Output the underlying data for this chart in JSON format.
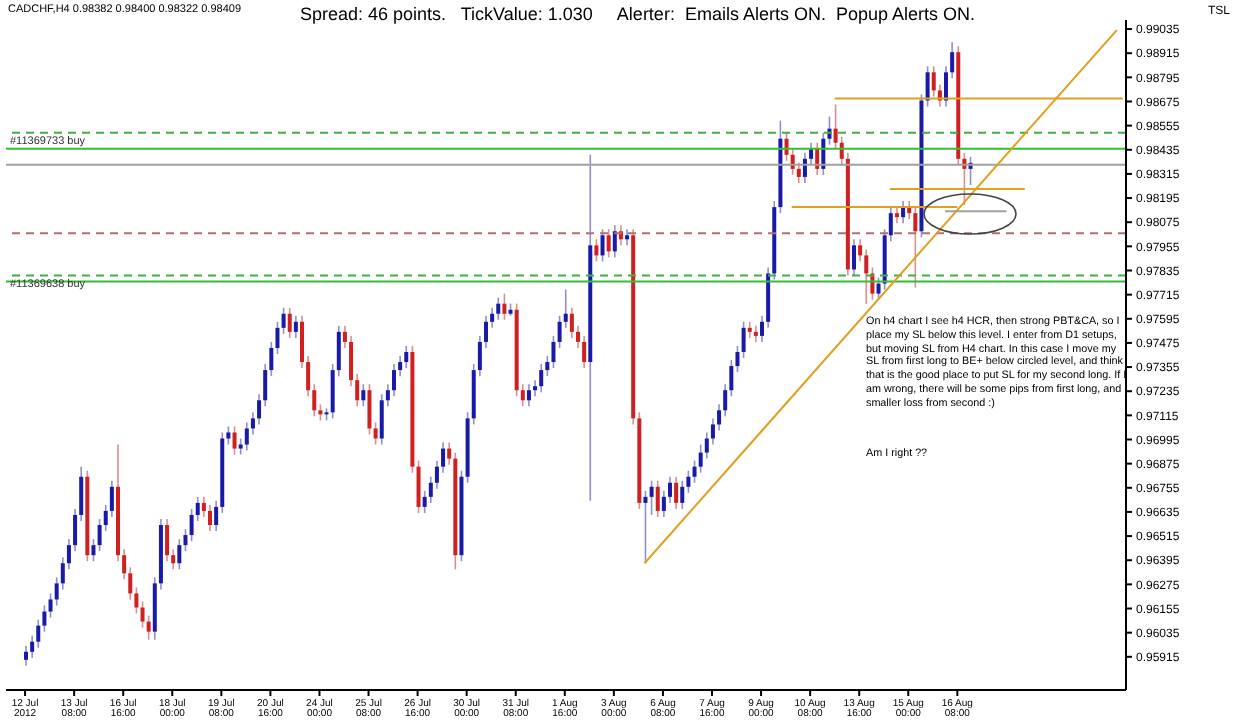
{
  "chart_data": {
    "type": "candlestick",
    "title": "CADCHF,H4 0.98382 0.98400 0.98322 0.98409",
    "subtitle": "Spread: 46 points.   TickValue: 1.030     Alerter:  Emails Alerts ON.  Popup Alerts ON.",
    "annotations": [
      "TSL",
      "On h4 chart I see h4 HCR, then strong PBT&CA, so I place my SL below this level. I enter from D1 setups, but moving SL from H4 chart. In this case I move my SL from first long to BE+ below circled level, and think that is the good place to put SL for my second long. If I am wrong, there will be some pips from first long, and smaller loss from second :)",
      "Am I right ??"
    ],
    "categories": [
      "12 Jul 2012",
      null,
      null,
      null,
      null,
      null,
      null,
      null,
      "13 Jul 08:00",
      null,
      null,
      null,
      null,
      null,
      null,
      null,
      "16 Jul 16:00",
      null,
      null,
      null,
      null,
      null,
      null,
      null,
      "18 Jul 00:00",
      null,
      null,
      null,
      null,
      null,
      null,
      null,
      "19 Jul 08:00",
      null,
      null,
      null,
      null,
      null,
      null,
      null,
      "20 Jul 16:00",
      null,
      null,
      null,
      null,
      null,
      null,
      null,
      "24 Jul 00:00",
      null,
      null,
      null,
      null,
      null,
      null,
      null,
      "25 Jul 08:00",
      null,
      null,
      null,
      null,
      null,
      null,
      null,
      "26 Jul 16:00",
      null,
      null,
      null,
      null,
      null,
      null,
      null,
      "30 Jul 00:00",
      null,
      null,
      null,
      null,
      null,
      null,
      null,
      "31 Jul 08:00",
      null,
      null,
      null,
      null,
      null,
      null,
      null,
      "1 Aug 16:00",
      null,
      null,
      null,
      null,
      null,
      null,
      null,
      "3 Aug 00:00",
      null,
      null,
      null,
      null,
      null,
      null,
      null,
      "6 Aug 08:00",
      null,
      null,
      null,
      null,
      null,
      null,
      null,
      "7 Aug 16:00",
      null,
      null,
      null,
      null,
      null,
      null,
      null,
      "9 Aug 00:00",
      null,
      null,
      null,
      null,
      null,
      null,
      null,
      "10 Aug 08:00",
      null,
      null,
      null,
      null,
      null,
      null,
      null,
      "13 Aug 16:00",
      null,
      null,
      null,
      null,
      null,
      null,
      null,
      "15 Aug 00:00",
      null,
      null,
      null,
      null,
      null,
      null,
      null,
      "16 Aug 08:00",
      null,
      null,
      null,
      null,
      null,
      null,
      null,
      null,
      null,
      null,
      null,
      null,
      null,
      null,
      null,
      null,
      null,
      null,
      null,
      null,
      null,
      null,
      null,
      null,
      null,
      null,
      null
    ],
    "ohlc": [
      [
        0.959,
        0.9597,
        0.9587,
        0.9594
      ],
      [
        0.9594,
        0.9602,
        0.9591,
        0.9599
      ],
      [
        0.9599,
        0.961,
        0.9596,
        0.9607
      ],
      [
        0.9607,
        0.9617,
        0.9604,
        0.9614
      ],
      [
        0.9614,
        0.9623,
        0.9611,
        0.962
      ],
      [
        0.962,
        0.9631,
        0.9617,
        0.9628
      ],
      [
        0.9628,
        0.9641,
        0.9625,
        0.9638
      ],
      [
        0.9638,
        0.965,
        0.9635,
        0.9647
      ],
      [
        0.9647,
        0.9665,
        0.9644,
        0.9662
      ],
      [
        0.9662,
        0.9686,
        0.9659,
        0.9681
      ],
      [
        0.9681,
        0.9684,
        0.9639,
        0.9642
      ],
      [
        0.9642,
        0.965,
        0.9639,
        0.9647
      ],
      [
        0.9647,
        0.966,
        0.9644,
        0.9657
      ],
      [
        0.9657,
        0.9667,
        0.9654,
        0.9664
      ],
      [
        0.9664,
        0.9679,
        0.9661,
        0.9676
      ],
      [
        0.9676,
        0.9697,
        0.9639,
        0.9642
      ],
      [
        0.9642,
        0.9645,
        0.963,
        0.9633
      ],
      [
        0.9633,
        0.9636,
        0.962,
        0.9623
      ],
      [
        0.9623,
        0.9626,
        0.9613,
        0.9616
      ],
      [
        0.9616,
        0.9619,
        0.9606,
        0.9609
      ],
      [
        0.9609,
        0.9612,
        0.96,
        0.9604
      ],
      [
        0.9604,
        0.9631,
        0.96,
        0.9628
      ],
      [
        0.9628,
        0.966,
        0.9625,
        0.9657
      ],
      [
        0.9657,
        0.966,
        0.9639,
        0.9642
      ],
      [
        0.9642,
        0.9645,
        0.9635,
        0.9638
      ],
      [
        0.9638,
        0.965,
        0.9635,
        0.9647
      ],
      [
        0.9647,
        0.9655,
        0.9644,
        0.9652
      ],
      [
        0.9652,
        0.9665,
        0.9649,
        0.9662
      ],
      [
        0.9662,
        0.9671,
        0.9659,
        0.9668
      ],
      [
        0.9668,
        0.9671,
        0.9661,
        0.9664
      ],
      [
        0.9664,
        0.9667,
        0.9654,
        0.9657
      ],
      [
        0.9657,
        0.9669,
        0.9654,
        0.9666
      ],
      [
        0.9666,
        0.9703,
        0.9663,
        0.97
      ],
      [
        0.97,
        0.9706,
        0.9697,
        0.9703
      ],
      [
        0.9703,
        0.9706,
        0.9692,
        0.9695
      ],
      [
        0.9695,
        0.97,
        0.9692,
        0.9697
      ],
      [
        0.9697,
        0.9708,
        0.9694,
        0.9705
      ],
      [
        0.9705,
        0.9713,
        0.9702,
        0.971
      ],
      [
        0.971,
        0.9722,
        0.9707,
        0.9719
      ],
      [
        0.9719,
        0.9737,
        0.9716,
        0.9734
      ],
      [
        0.9734,
        0.9748,
        0.9731,
        0.9745
      ],
      [
        0.9745,
        0.9758,
        0.9742,
        0.9755
      ],
      [
        0.9755,
        0.9765,
        0.9752,
        0.9762
      ],
      [
        0.9762,
        0.9765,
        0.975,
        0.9753
      ],
      [
        0.9753,
        0.9761,
        0.975,
        0.9758
      ],
      [
        0.9758,
        0.9761,
        0.9735,
        0.9738
      ],
      [
        0.9738,
        0.9741,
        0.9721,
        0.9724
      ],
      [
        0.9724,
        0.9727,
        0.9711,
        0.9714
      ],
      [
        0.9714,
        0.9717,
        0.9709,
        0.9712
      ],
      [
        0.9712,
        0.9715,
        0.9709,
        0.9713
      ],
      [
        0.9713,
        0.9737,
        0.971,
        0.9734
      ],
      [
        0.9734,
        0.9756,
        0.9731,
        0.9753
      ],
      [
        0.9753,
        0.9756,
        0.9745,
        0.9748
      ],
      [
        0.9748,
        0.9751,
        0.9726,
        0.9729
      ],
      [
        0.9729,
        0.9732,
        0.9716,
        0.9719
      ],
      [
        0.9719,
        0.9727,
        0.9716,
        0.9724
      ],
      [
        0.9724,
        0.9727,
        0.9702,
        0.9705
      ],
      [
        0.9705,
        0.9708,
        0.9697,
        0.97
      ],
      [
        0.97,
        0.9722,
        0.9697,
        0.9719
      ],
      [
        0.9719,
        0.9727,
        0.9716,
        0.9724
      ],
      [
        0.9724,
        0.9737,
        0.9721,
        0.9734
      ],
      [
        0.9734,
        0.9741,
        0.9731,
        0.9738
      ],
      [
        0.9738,
        0.9746,
        0.9735,
        0.9743
      ],
      [
        0.9743,
        0.9746,
        0.9683,
        0.9686
      ],
      [
        0.9686,
        0.9689,
        0.9663,
        0.9666
      ],
      [
        0.9666,
        0.9674,
        0.9663,
        0.9671
      ],
      [
        0.9671,
        0.9681,
        0.9668,
        0.9678
      ],
      [
        0.9678,
        0.9689,
        0.9675,
        0.9686
      ],
      [
        0.9686,
        0.9698,
        0.9683,
        0.9695
      ],
      [
        0.9695,
        0.9698,
        0.9687,
        0.969
      ],
      [
        0.969,
        0.9693,
        0.9635,
        0.9642
      ],
      [
        0.9642,
        0.9684,
        0.9639,
        0.9681
      ],
      [
        0.9681,
        0.9713,
        0.9678,
        0.971
      ],
      [
        0.971,
        0.9737,
        0.9707,
        0.9734
      ],
      [
        0.9734,
        0.9751,
        0.9731,
        0.9748
      ],
      [
        0.9748,
        0.9761,
        0.9745,
        0.9758
      ],
      [
        0.9758,
        0.9765,
        0.9755,
        0.9762
      ],
      [
        0.9762,
        0.977,
        0.9759,
        0.9767
      ],
      [
        0.9767,
        0.9772,
        0.9759,
        0.9762
      ],
      [
        0.9762,
        0.9767,
        0.9761,
        0.9764
      ],
      [
        0.9764,
        0.9767,
        0.9721,
        0.9724
      ],
      [
        0.9724,
        0.9727,
        0.9716,
        0.9719
      ],
      [
        0.9719,
        0.9727,
        0.9716,
        0.9724
      ],
      [
        0.9724,
        0.9729,
        0.9721,
        0.9726
      ],
      [
        0.9726,
        0.9737,
        0.9723,
        0.9734
      ],
      [
        0.9734,
        0.9741,
        0.9731,
        0.9738
      ],
      [
        0.9738,
        0.9751,
        0.9735,
        0.9748
      ],
      [
        0.9748,
        0.9761,
        0.9745,
        0.9758
      ],
      [
        0.9758,
        0.9774,
        0.9755,
        0.9762
      ],
      [
        0.9762,
        0.9765,
        0.975,
        0.9753
      ],
      [
        0.9753,
        0.9756,
        0.9745,
        0.9748
      ],
      [
        0.9748,
        0.9751,
        0.9735,
        0.9738
      ],
      [
        0.9738,
        0.9841,
        0.9669,
        0.9796
      ],
      [
        0.9796,
        0.9799,
        0.9788,
        0.9791
      ],
      [
        0.9791,
        0.9804,
        0.9788,
        0.9801
      ],
      [
        0.9801,
        0.9804,
        0.979,
        0.9793
      ],
      [
        0.9793,
        0.9806,
        0.979,
        0.9803
      ],
      [
        0.9803,
        0.9806,
        0.9796,
        0.9799
      ],
      [
        0.9799,
        0.9804,
        0.9796,
        0.9801
      ],
      [
        0.9801,
        0.9804,
        0.9707,
        0.971
      ],
      [
        0.971,
        0.9713,
        0.9665,
        0.9668
      ],
      [
        0.9668,
        0.9674,
        0.9638,
        0.9671
      ],
      [
        0.9671,
        0.9679,
        0.9662,
        0.9676
      ],
      [
        0.9676,
        0.9679,
        0.9661,
        0.9664
      ],
      [
        0.9664,
        0.9674,
        0.9661,
        0.9671
      ],
      [
        0.9671,
        0.9681,
        0.9668,
        0.9678
      ],
      [
        0.9678,
        0.9681,
        0.9665,
        0.9668
      ],
      [
        0.9668,
        0.9679,
        0.9665,
        0.9676
      ],
      [
        0.9676,
        0.9684,
        0.9673,
        0.9681
      ],
      [
        0.9681,
        0.9689,
        0.9678,
        0.9686
      ],
      [
        0.9686,
        0.9697,
        0.9683,
        0.9693
      ],
      [
        0.9693,
        0.9703,
        0.969,
        0.97
      ],
      [
        0.97,
        0.971,
        0.9697,
        0.9707
      ],
      [
        0.9707,
        0.9717,
        0.9704,
        0.9714
      ],
      [
        0.9714,
        0.9727,
        0.9711,
        0.9724
      ],
      [
        0.9724,
        0.9739,
        0.9721,
        0.9736
      ],
      [
        0.9736,
        0.9746,
        0.9733,
        0.9743
      ],
      [
        0.9743,
        0.9758,
        0.974,
        0.9755
      ],
      [
        0.9755,
        0.9758,
        0.975,
        0.9753
      ],
      [
        0.9753,
        0.9756,
        0.9748,
        0.9751
      ],
      [
        0.9751,
        0.9761,
        0.9748,
        0.9758
      ],
      [
        0.9758,
        0.9785,
        0.9755,
        0.9782
      ],
      [
        0.9782,
        0.9818,
        0.9779,
        0.9815
      ],
      [
        0.9815,
        0.9858,
        0.9812,
        0.9849
      ],
      [
        0.9849,
        0.9852,
        0.9838,
        0.9841
      ],
      [
        0.9841,
        0.9844,
        0.9831,
        0.9834
      ],
      [
        0.9834,
        0.9837,
        0.9827,
        0.983
      ],
      [
        0.983,
        0.9842,
        0.9827,
        0.9839
      ],
      [
        0.9839,
        0.9847,
        0.9836,
        0.9844
      ],
      [
        0.9844,
        0.9847,
        0.9831,
        0.9834
      ],
      [
        0.9834,
        0.9852,
        0.9831,
        0.9849
      ],
      [
        0.9849,
        0.986,
        0.9846,
        0.9854
      ],
      [
        0.9854,
        0.9866,
        0.9844,
        0.9847
      ],
      [
        0.9847,
        0.985,
        0.9836,
        0.9839
      ],
      [
        0.9839,
        0.9842,
        0.9781,
        0.9784
      ],
      [
        0.9784,
        0.9799,
        0.9781,
        0.9796
      ],
      [
        0.9796,
        0.9799,
        0.9788,
        0.9791
      ],
      [
        0.9791,
        0.9794,
        0.9767,
        0.9782
      ],
      [
        0.9782,
        0.9785,
        0.9769,
        0.9772
      ],
      [
        0.9772,
        0.978,
        0.9769,
        0.9777
      ],
      [
        0.9777,
        0.9804,
        0.9774,
        0.9801
      ],
      [
        0.9801,
        0.9815,
        0.9798,
        0.9812
      ],
      [
        0.9812,
        0.9815,
        0.9807,
        0.981
      ],
      [
        0.981,
        0.9818,
        0.9807,
        0.9815
      ],
      [
        0.9815,
        0.9818,
        0.9809,
        0.9812
      ],
      [
        0.9812,
        0.9815,
        0.9775,
        0.9803
      ],
      [
        0.9803,
        0.9871,
        0.98,
        0.9868
      ],
      [
        0.9868,
        0.9885,
        0.9865,
        0.9882
      ],
      [
        0.9882,
        0.9885,
        0.987,
        0.9873
      ],
      [
        0.9873,
        0.9876,
        0.9865,
        0.9868
      ],
      [
        0.9868,
        0.9885,
        0.9865,
        0.9882
      ],
      [
        0.9882,
        0.9897,
        0.9879,
        0.9892
      ],
      [
        0.9892,
        0.9895,
        0.9836,
        0.9839
      ],
      [
        0.9839,
        0.9842,
        0.9816,
        0.9834
      ],
      [
        0.9834,
        0.984,
        0.9826,
        0.9837
      ],
      null,
      null,
      null,
      null,
      null,
      null,
      null,
      null,
      null,
      null,
      null,
      null,
      null,
      null,
      null,
      null,
      null,
      null,
      null,
      null,
      null,
      null,
      null,
      null,
      null
    ],
    "series": [
      {
        "type": "line",
        "color": "#e0a020",
        "values": [
          null,
          null,
          null,
          null,
          null,
          null,
          null,
          null,
          null,
          null,
          null,
          null,
          null,
          null,
          null,
          null,
          null,
          null,
          null,
          null,
          null,
          null,
          null,
          null,
          null,
          null,
          null,
          null,
          null,
          null,
          null,
          null,
          null,
          null,
          null,
          null,
          null,
          null,
          null,
          null,
          null,
          null,
          null,
          null,
          null,
          null,
          null,
          null,
          null,
          null,
          null,
          null,
          null,
          null,
          null,
          null,
          null,
          null,
          null,
          null,
          null,
          null,
          null,
          null,
          null,
          null,
          null,
          null,
          null,
          null,
          null,
          null,
          null,
          null,
          null,
          null,
          null,
          null,
          null,
          null,
          null,
          null,
          null,
          null,
          null,
          null,
          null,
          null,
          null,
          null,
          null,
          null,
          null,
          null,
          null,
          null,
          null,
          null,
          null,
          null,
          null,
          0.9638,
          null,
          null,
          null,
          null,
          null,
          null,
          null,
          null,
          null,
          null,
          null,
          null,
          null,
          null,
          null,
          null,
          null,
          null,
          null,
          null,
          null,
          null,
          null,
          null,
          null,
          null,
          null,
          null,
          null,
          null,
          null,
          null,
          null,
          null,
          null,
          null,
          null,
          null,
          null,
          null,
          null,
          null,
          null,
          null,
          null,
          null,
          null,
          null,
          null,
          null,
          null,
          null,
          null,
          null,
          null,
          null,
          null,
          null,
          null,
          null,
          null,
          null,
          null,
          null,
          null,
          null,
          null,
          null,
          null,
          null,
          null,
          null,
          null,
          null,
          null,
          null,
          0.9903,
          null
        ]
      },
      {
        "type": "line",
        "color": "#e0a020",
        "values": [
          null,
          null,
          null,
          null,
          null,
          null,
          null,
          null,
          null,
          null,
          null,
          null,
          null,
          null,
          null,
          null,
          null,
          null,
          null,
          null,
          null,
          null,
          null,
          null,
          null,
          null,
          null,
          null,
          null,
          null,
          null,
          null,
          null,
          null,
          null,
          null,
          null,
          null,
          null,
          null,
          null,
          null,
          null,
          null,
          null,
          null,
          null,
          null,
          null,
          null,
          null,
          null,
          null,
          null,
          null,
          null,
          null,
          null,
          null,
          null,
          null,
          null,
          null,
          null,
          null,
          null,
          null,
          null,
          null,
          null,
          null,
          null,
          null,
          null,
          null,
          null,
          null,
          null,
          null,
          null,
          null,
          null,
          null,
          null,
          null,
          null,
          null,
          null,
          null,
          null,
          null,
          null,
          null,
          null,
          null,
          null,
          null,
          null,
          null,
          null,
          null,
          null,
          null,
          null,
          null,
          null,
          null,
          null,
          null,
          null,
          null,
          null,
          null,
          null,
          null,
          null,
          null,
          null,
          null,
          null,
          null,
          null,
          null,
          null,
          null,
          null,
          null,
          null,
          null,
          null,
          null,
          null,
          0.9869,
          0.9869,
          0.9869,
          0.9869,
          0.9869,
          0.9869,
          0.9869,
          0.9869,
          0.9869,
          0.9869,
          0.9869,
          0.9869,
          0.9869,
          0.9869,
          0.9869,
          0.9869,
          0.9869,
          0.9869,
          0.9869,
          0.9869,
          0.9869,
          0.9869,
          0.9869,
          0.9869,
          0.9869,
          0.9869,
          0.9869,
          0.9869,
          0.9869,
          0.9869,
          0.9869,
          0.9869,
          0.9869,
          0.9869,
          0.9869,
          0.9869,
          0.9869,
          0.9869,
          0.9869,
          0.9869,
          0.9869,
          0.9869,
          0.9869,
          0.9869,
          0.9869,
          0.9869,
          0.9869,
          0.9869
        ]
      },
      {
        "type": "line",
        "color": "#e0a020",
        "values": [
          null,
          null,
          null,
          null,
          null,
          null,
          null,
          null,
          null,
          null,
          null,
          null,
          null,
          null,
          null,
          null,
          null,
          null,
          null,
          null,
          null,
          null,
          null,
          null,
          null,
          null,
          null,
          null,
          null,
          null,
          null,
          null,
          null,
          null,
          null,
          null,
          null,
          null,
          null,
          null,
          null,
          null,
          null,
          null,
          null,
          null,
          null,
          null,
          null,
          null,
          null,
          null,
          null,
          null,
          null,
          null,
          null,
          null,
          null,
          null,
          null,
          null,
          null,
          null,
          null,
          null,
          null,
          null,
          null,
          null,
          null,
          null,
          null,
          null,
          null,
          null,
          null,
          null,
          null,
          null,
          null,
          null,
          null,
          null,
          null,
          null,
          null,
          null,
          null,
          null,
          null,
          null,
          null,
          null,
          null,
          null,
          null,
          null,
          null,
          null,
          null,
          null,
          null,
          null,
          null,
          null,
          null,
          null,
          null,
          null,
          null,
          null,
          null,
          null,
          null,
          null,
          null,
          null,
          null,
          null,
          null,
          null,
          null,
          null,
          null,
          0.9815,
          0.9815,
          0.9815,
          0.9815,
          0.9815,
          0.9815,
          0.9815,
          0.9815,
          0.9815,
          0.9815,
          0.9815,
          0.9815,
          0.9815,
          0.9815,
          0.9815,
          0.9815,
          0.9815,
          0.9815,
          0.9815,
          0.9815,
          0.9815,
          0.9815,
          0.9815,
          0.9815,
          0.9815,
          0.9815,
          0.9815,
          0.9815,
          null,
          null,
          null,
          null,
          null,
          null,
          null,
          null,
          null,
          null,
          null,
          null,
          null,
          null,
          null,
          null,
          null,
          null,
          null,
          null,
          null,
          null,
          null,
          null,
          null,
          null,
          null
        ]
      },
      {
        "type": "line",
        "color": "#e0a020",
        "values": [
          null,
          null,
          null,
          null,
          null,
          null,
          null,
          null,
          null,
          null,
          null,
          null,
          null,
          null,
          null,
          null,
          null,
          null,
          null,
          null,
          null,
          null,
          null,
          null,
          null,
          null,
          null,
          null,
          null,
          null,
          null,
          null,
          null,
          null,
          null,
          null,
          null,
          null,
          null,
          null,
          null,
          null,
          null,
          null,
          null,
          null,
          null,
          null,
          null,
          null,
          null,
          null,
          null,
          null,
          null,
          null,
          null,
          null,
          null,
          null,
          null,
          null,
          null,
          null,
          null,
          null,
          null,
          null,
          null,
          null,
          null,
          null,
          null,
          null,
          null,
          null,
          null,
          null,
          null,
          null,
          null,
          null,
          null,
          null,
          null,
          null,
          null,
          null,
          null,
          null,
          null,
          null,
          null,
          null,
          null,
          null,
          null,
          null,
          null,
          null,
          null,
          null,
          null,
          null,
          null,
          null,
          null,
          null,
          null,
          null,
          null,
          null,
          null,
          null,
          null,
          null,
          null,
          null,
          null,
          null,
          null,
          null,
          null,
          null,
          null,
          null,
          null,
          null,
          null,
          null,
          null,
          null,
          null,
          null,
          null,
          null,
          null,
          null,
          null,
          null,
          null,
          0.9824,
          0.9824,
          0.9824,
          0.9824,
          0.9824,
          0.9824,
          0.9824,
          0.9824,
          0.9824,
          0.9824,
          0.9824,
          0.9824,
          0.9824,
          0.9824,
          0.9824,
          0.9824,
          0.9824,
          0.9824,
          0.9824,
          0.9824,
          0.9824,
          0.9824,
          0.9824,
          null,
          null,
          null,
          null,
          null,
          null,
          null,
          null,
          null,
          null,
          null,
          null,
          null,
          null,
          null,
          null
        ]
      },
      {
        "type": "line",
        "color": "#a0a0a0",
        "values": [
          null,
          null,
          null,
          null,
          null,
          null,
          null,
          null,
          null,
          null,
          null,
          null,
          null,
          null,
          null,
          null,
          null,
          null,
          null,
          null,
          null,
          null,
          null,
          null,
          null,
          null,
          null,
          null,
          null,
          null,
          null,
          null,
          null,
          null,
          null,
          null,
          null,
          null,
          null,
          null,
          null,
          null,
          null,
          null,
          null,
          null,
          null,
          null,
          null,
          null,
          null,
          null,
          null,
          null,
          null,
          null,
          null,
          null,
          null,
          null,
          null,
          null,
          null,
          null,
          null,
          null,
          null,
          null,
          null,
          null,
          null,
          null,
          null,
          null,
          null,
          null,
          null,
          null,
          null,
          null,
          null,
          null,
          null,
          null,
          null,
          null,
          null,
          null,
          null,
          null,
          null,
          null,
          null,
          null,
          null,
          null,
          null,
          null,
          null,
          null,
          null,
          null,
          null,
          null,
          null,
          null,
          null,
          null,
          null,
          null,
          null,
          null,
          null,
          null,
          null,
          null,
          null,
          null,
          null,
          null,
          null,
          null,
          null,
          null,
          null,
          null,
          null,
          null,
          null,
          null,
          null,
          null,
          null,
          null,
          null,
          null,
          null,
          null,
          null,
          null,
          null,
          null,
          null,
          null,
          null,
          null,
          null,
          null,
          null,
          null,
          0.9813,
          0.9813,
          0.9813,
          0.9813,
          0.9813,
          0.9813,
          0.9813,
          0.9813,
          0.9813,
          0.9813,
          0.9813,
          null,
          null,
          null,
          null,
          null,
          null,
          null,
          null,
          null,
          null,
          null,
          null,
          null,
          null,
          null,
          null,
          null,
          null,
          null
        ]
      }
    ],
    "ylim": [
      0.9575,
      0.9908
    ],
    "yticks": [
      0.99035,
      0.98915,
      0.98795,
      0.98675,
      0.98555,
      0.98435,
      0.98315,
      0.98195,
      0.98075,
      0.97955,
      0.97835,
      0.97715,
      0.97595,
      0.97475,
      0.97355,
      0.97235,
      0.97115,
      0.96995,
      0.96875,
      0.96755,
      0.96635,
      0.96515,
      0.96395,
      0.96275,
      0.96155,
      0.96035,
      0.95915
    ],
    "ref_lines": [
      {
        "axis": "y",
        "value": 0.9852,
        "label": "#11369733 buy",
        "color": "#40b040",
        "line_style": "dashed"
      },
      {
        "axis": "y",
        "value": 0.9844,
        "color": "#30c030",
        "line_style": "solid"
      },
      {
        "axis": "y",
        "value": 0.9836,
        "color": "#a0a0a0",
        "line_style": "solid"
      },
      {
        "axis": "y",
        "value": 0.9802,
        "color": "#b07070",
        "line_style": "dashed"
      },
      {
        "axis": "y",
        "value": 0.9781,
        "label": "#11369638 buy",
        "color": "#40b040",
        "line_style": "dashed"
      },
      {
        "axis": "y",
        "value": 0.9778,
        "color": "#30c030",
        "line_style": "solid"
      }
    ]
  }
}
